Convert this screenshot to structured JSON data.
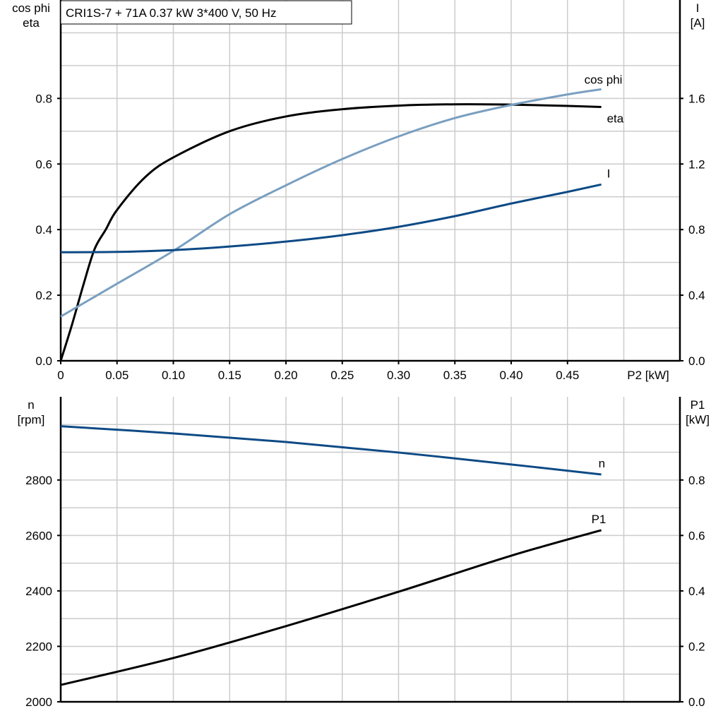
{
  "title": "CRI1S-7 + 71A   0.37 kW   3*400 V, 50 Hz",
  "colors": {
    "eta": "#000000",
    "cos_phi": "#7a9fc0",
    "I": "#0d4a85",
    "n": "#0d4a85",
    "P1": "#000000",
    "grid": "#cccccc"
  },
  "chart_data": [
    {
      "type": "line",
      "xlabel": "P2 [kW]",
      "xlim": [
        0,
        0.5
      ],
      "xticks": [
        "0",
        "0.05",
        "0.10",
        "0.15",
        "0.20",
        "0.25",
        "0.30",
        "0.35",
        "0.40",
        "0.45"
      ],
      "ylabel_left": [
        "cos phi",
        "eta"
      ],
      "ylim_left": [
        0,
        1.1
      ],
      "yticks_left": [
        "0.0",
        "0.2",
        "0.4",
        "0.6",
        "0.8"
      ],
      "ylabel_right": [
        "I",
        "[A]"
      ],
      "ylim_right": [
        0,
        2.2
      ],
      "yticks_right": [
        "0.0",
        "0.4",
        "0.8",
        "1.2",
        "1.6"
      ],
      "grid": true,
      "series": [
        {
          "name": "eta",
          "axis": "left",
          "color": "#000000",
          "x": [
            0,
            0.01,
            0.02,
            0.03,
            0.04,
            0.05,
            0.075,
            0.1,
            0.15,
            0.2,
            0.25,
            0.3,
            0.35,
            0.4,
            0.45,
            0.48
          ],
          "y": [
            0,
            0.11,
            0.23,
            0.34,
            0.4,
            0.46,
            0.56,
            0.62,
            0.7,
            0.745,
            0.767,
            0.778,
            0.782,
            0.781,
            0.777,
            0.774
          ]
        },
        {
          "name": "cos phi",
          "axis": "left",
          "color": "#7a9fc0",
          "x": [
            0,
            0.05,
            0.1,
            0.15,
            0.2,
            0.25,
            0.3,
            0.35,
            0.4,
            0.45,
            0.48
          ],
          "y": [
            0.135,
            0.235,
            0.335,
            0.447,
            0.535,
            0.615,
            0.684,
            0.74,
            0.78,
            0.812,
            0.828
          ]
        },
        {
          "name": "I",
          "axis": "right",
          "color": "#0d4a85",
          "x": [
            0,
            0.05,
            0.1,
            0.15,
            0.2,
            0.25,
            0.3,
            0.35,
            0.4,
            0.45,
            0.48
          ],
          "y": [
            0.662,
            0.664,
            0.675,
            0.697,
            0.727,
            0.766,
            0.817,
            0.882,
            0.959,
            1.03,
            1.075
          ]
        }
      ]
    },
    {
      "type": "line",
      "xlim": [
        0,
        0.5
      ],
      "ylabel_left": [
        "n",
        "[rpm]"
      ],
      "ylim_left": [
        2000,
        3100
      ],
      "yticks_left": [
        "2000",
        "2200",
        "2400",
        "2600",
        "2800"
      ],
      "ylabel_right": [
        "P1",
        "[kW]"
      ],
      "ylim_right": [
        0,
        1.1
      ],
      "yticks_right": [
        "0.0",
        "0.2",
        "0.4",
        "0.6",
        "0.8"
      ],
      "grid": true,
      "series": [
        {
          "name": "n",
          "axis": "left",
          "color": "#0d4a85",
          "x": [
            0,
            0.1,
            0.2,
            0.3,
            0.4,
            0.48
          ],
          "y": [
            2994,
            2968,
            2937,
            2899,
            2856,
            2820
          ]
        },
        {
          "name": "P1",
          "axis": "right",
          "color": "#000000",
          "x": [
            0,
            0.1,
            0.2,
            0.3,
            0.4,
            0.48
          ],
          "y": [
            0.061,
            0.158,
            0.273,
            0.397,
            0.527,
            0.619
          ]
        }
      ]
    }
  ]
}
